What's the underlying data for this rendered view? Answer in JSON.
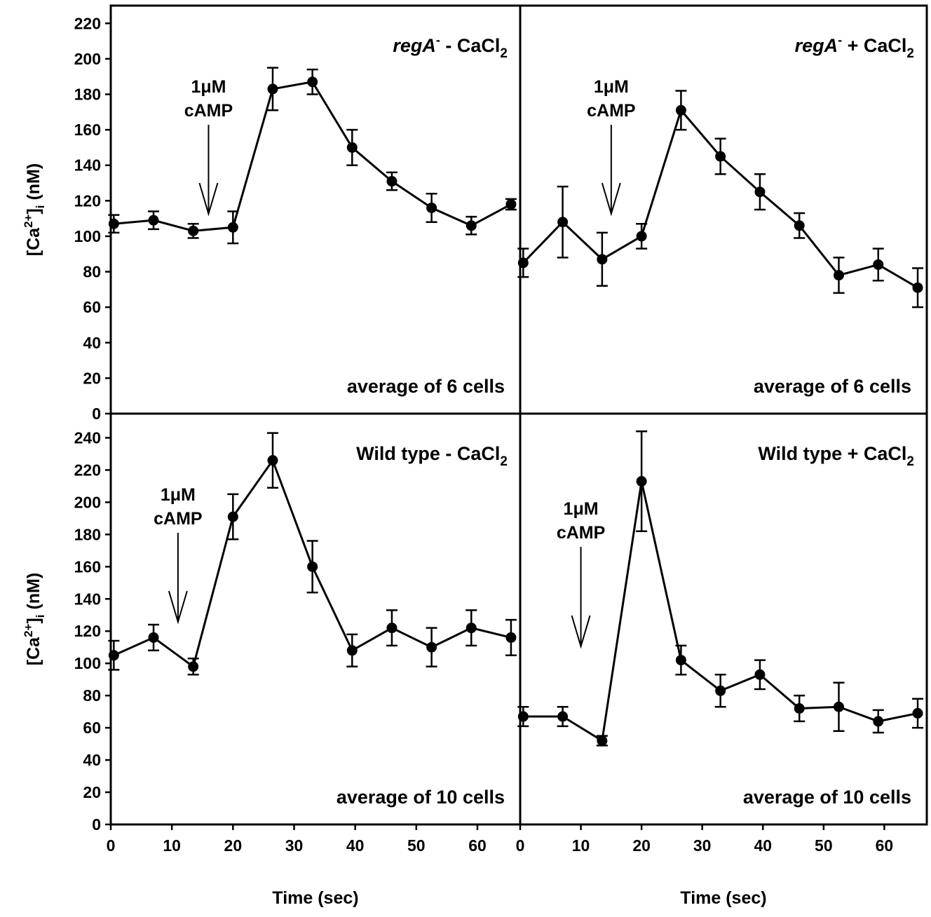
{
  "chart_data": [
    {
      "type": "line",
      "panel_label": {
        "main": "regA",
        "sup": "-",
        "rest": " - CaCl",
        "sub": "2"
      },
      "note": "average of 6 cells",
      "annotation": {
        "line1": "1μM",
        "line2": "cAMP",
        "x": 16
      },
      "ylabel": {
        "pre": "[Ca",
        "sup": "2+",
        "mid": "]",
        "sub": "i",
        "post": " (nM)"
      },
      "xlabel": "",
      "ylim": [
        0,
        230
      ],
      "xlim": [
        0,
        67
      ],
      "yticks": [
        0,
        20,
        40,
        60,
        80,
        100,
        120,
        140,
        160,
        180,
        200,
        220
      ],
      "xticks": [],
      "series": [
        {
          "x": [
            0.5,
            7,
            13.5,
            20,
            26.5,
            33,
            39.5,
            46,
            52.5,
            59,
            65.5
          ],
          "y": [
            107,
            109,
            103,
            105,
            183,
            187,
            150,
            131,
            116,
            106,
            118
          ],
          "err": [
            5,
            5,
            4,
            9,
            12,
            7,
            10,
            5,
            8,
            5,
            3
          ]
        }
      ]
    },
    {
      "type": "line",
      "panel_label": {
        "main": "regA",
        "sup": "-",
        "rest": " + CaCl",
        "sub": "2"
      },
      "note": "average of 6 cells",
      "annotation": {
        "line1": "1μM",
        "line2": "cAMP",
        "x": 15
      },
      "ylabel": null,
      "xlabel": "",
      "ylim": [
        0,
        230
      ],
      "xlim": [
        0,
        67
      ],
      "yticks": [],
      "xticks": [],
      "series": [
        {
          "x": [
            0.5,
            7,
            13.5,
            20,
            26.5,
            33,
            39.5,
            46,
            52.5,
            59,
            65.5
          ],
          "y": [
            85,
            108,
            87,
            100,
            171,
            145,
            125,
            106,
            78,
            84,
            71
          ],
          "err": [
            8,
            20,
            15,
            7,
            11,
            10,
            10,
            7,
            10,
            9,
            11
          ]
        }
      ]
    },
    {
      "type": "line",
      "panel_label": {
        "main": "Wild type - CaCl",
        "sup": "",
        "rest": "",
        "sub": "2"
      },
      "note": "average of 10 cells",
      "annotation": {
        "line1": "1μM",
        "line2": "cAMP",
        "x": 11
      },
      "ylabel": {
        "pre": "[Ca",
        "sup": "2+",
        "mid": "]",
        "sub": "i",
        "post": " (nM)"
      },
      "xlabel": "Time (sec)",
      "ylim": [
        0,
        255
      ],
      "xlim": [
        0,
        67
      ],
      "yticks": [
        0,
        20,
        40,
        60,
        80,
        100,
        120,
        140,
        160,
        180,
        200,
        220,
        240
      ],
      "xticks": [
        0,
        10,
        20,
        30,
        40,
        50,
        60
      ],
      "series": [
        {
          "x": [
            0.5,
            7,
            13.5,
            20,
            26.5,
            33,
            39.5,
            46,
            52.5,
            59,
            65.5
          ],
          "y": [
            105,
            116,
            98,
            191,
            226,
            160,
            108,
            122,
            110,
            122,
            116
          ],
          "err": [
            9,
            8,
            5,
            14,
            17,
            16,
            10,
            11,
            12,
            11,
            11
          ]
        }
      ]
    },
    {
      "type": "line",
      "panel_label": {
        "main": "Wild type + CaCl",
        "sup": "",
        "rest": "",
        "sub": "2"
      },
      "note": "average of 10 cells",
      "annotation": {
        "line1": "1μM",
        "line2": "cAMP",
        "x": 10
      },
      "ylabel": null,
      "xlabel": "Time (sec)",
      "ylim": [
        0,
        255
      ],
      "xlim": [
        0,
        67
      ],
      "yticks": [],
      "xticks": [
        0,
        10,
        20,
        30,
        40,
        50,
        60
      ],
      "series": [
        {
          "x": [
            0.5,
            7,
            13.5,
            20,
            26.5,
            33,
            39.5,
            46,
            52.5,
            59,
            65.5
          ],
          "y": [
            67,
            67,
            52,
            213,
            102,
            83,
            93,
            72,
            73,
            64,
            69
          ],
          "err": [
            6,
            6,
            3,
            31,
            9,
            10,
            9,
            8,
            15,
            7,
            9
          ]
        }
      ]
    }
  ]
}
